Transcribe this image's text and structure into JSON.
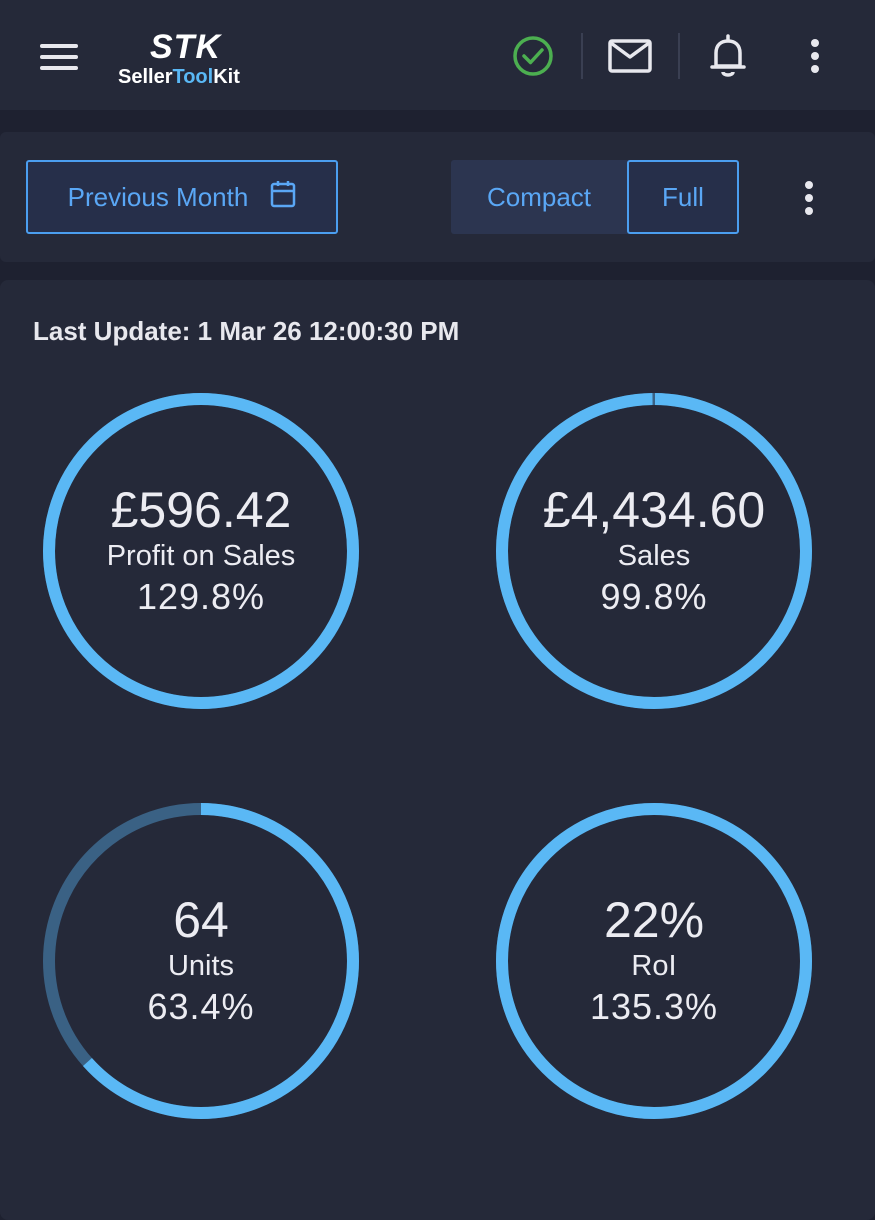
{
  "header": {
    "logo_mark": "STK",
    "logo_text_1": "Seller",
    "logo_text_2": "Tool",
    "logo_text_3": "Kit",
    "status_color": "#4caf50",
    "icons": [
      "menu-icon",
      "check-circle-icon",
      "mail-icon",
      "bell-icon",
      "more-vertical-icon"
    ]
  },
  "toolbar": {
    "period_label": "Previous Month",
    "period_icon": "calendar-icon",
    "view_toggle": {
      "compact_label": "Compact",
      "full_label": "Full",
      "selected": "Full"
    }
  },
  "panel": {
    "last_update": "Last Update: 1 Mar 26 12:00:30 PM"
  },
  "colors": {
    "ring": "#5ab8f5",
    "ring_track": "#3a6184",
    "background": "#1e2130",
    "surface": "#252939",
    "accent_text": "#5aa7f5"
  },
  "metrics": [
    {
      "value": "£596.42",
      "label": "Profit on Sales",
      "percent": "129.8%",
      "fill": 1.0
    },
    {
      "value": "£4,434.60",
      "label": "Sales",
      "percent": "99.8%",
      "fill": 0.998
    },
    {
      "value": "64",
      "label": "Units",
      "percent": "63.4%",
      "fill": 0.634
    },
    {
      "value": "22%",
      "label": "RoI",
      "percent": "135.3%",
      "fill": 1.0
    }
  ]
}
